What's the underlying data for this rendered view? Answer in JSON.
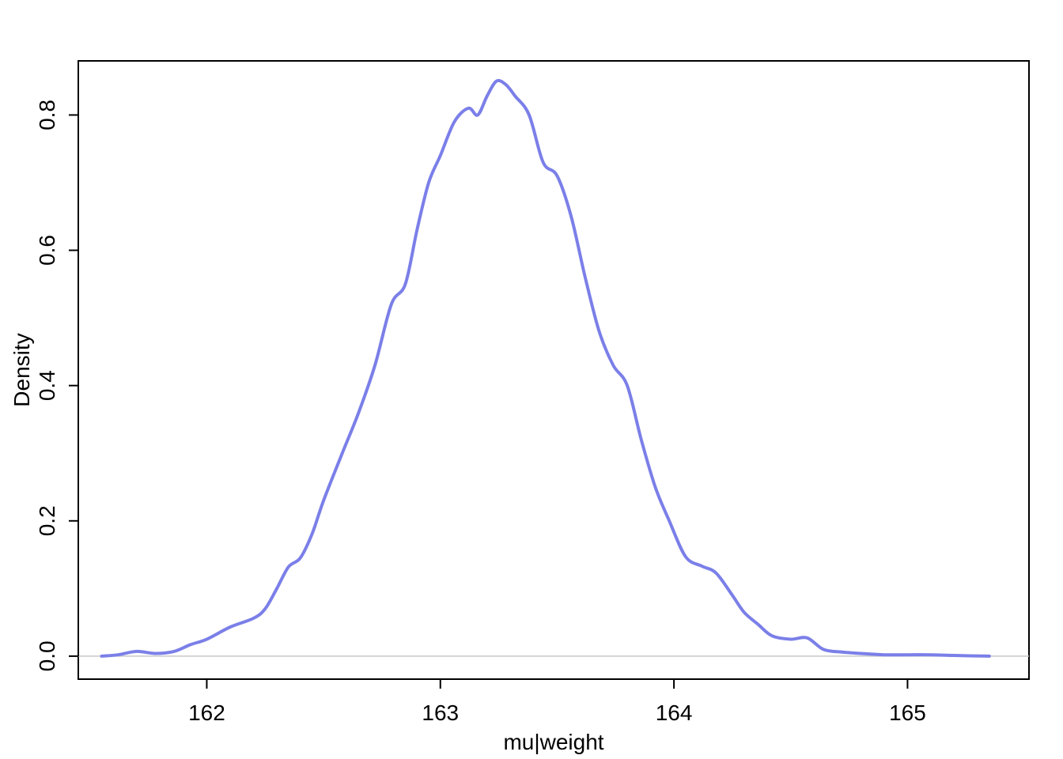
{
  "chart_data": {
    "type": "line",
    "title": "",
    "xlabel": "mu|weight",
    "ylabel": "Density",
    "xlim": [
      161.45,
      165.52
    ],
    "ylim": [
      -0.034,
      0.88
    ],
    "x_ticks": [
      162,
      163,
      164,
      165
    ],
    "x_tick_labels": [
      "162",
      "163",
      "164",
      "165"
    ],
    "y_ticks": [
      0.0,
      0.2,
      0.4,
      0.6,
      0.8
    ],
    "y_tick_labels": [
      "0.0",
      "0.2",
      "0.4",
      "0.6",
      "0.8"
    ],
    "grid": false,
    "reference_line": {
      "y": 0,
      "color": "#c8c8c8"
    },
    "series": [
      {
        "color": "#7b7fe8",
        "x": [
          161.55,
          161.62,
          161.7,
          161.78,
          161.86,
          161.93,
          162.0,
          162.1,
          162.2,
          162.25,
          162.3,
          162.35,
          162.4,
          162.45,
          162.5,
          162.58,
          162.65,
          162.72,
          162.79,
          162.85,
          162.9,
          162.95,
          163.0,
          163.06,
          163.12,
          163.16,
          163.2,
          163.24,
          163.28,
          163.32,
          163.38,
          163.44,
          163.5,
          163.56,
          163.62,
          163.68,
          163.74,
          163.8,
          163.86,
          163.92,
          163.98,
          164.05,
          164.12,
          164.18,
          164.25,
          164.3,
          164.36,
          164.42,
          164.5,
          164.57,
          164.64,
          164.72,
          164.8,
          164.9,
          165.0,
          165.1,
          165.2,
          165.35
        ],
        "y": [
          0.0,
          0.002,
          0.007,
          0.004,
          0.007,
          0.017,
          0.025,
          0.043,
          0.056,
          0.07,
          0.1,
          0.132,
          0.145,
          0.18,
          0.23,
          0.3,
          0.36,
          0.43,
          0.52,
          0.55,
          0.63,
          0.7,
          0.74,
          0.79,
          0.81,
          0.8,
          0.828,
          0.85,
          0.845,
          0.828,
          0.8,
          0.73,
          0.71,
          0.65,
          0.56,
          0.48,
          0.43,
          0.4,
          0.32,
          0.25,
          0.2,
          0.147,
          0.133,
          0.123,
          0.09,
          0.065,
          0.047,
          0.03,
          0.025,
          0.027,
          0.01,
          0.006,
          0.004,
          0.002,
          0.002,
          0.002,
          0.001,
          0.0
        ]
      }
    ]
  }
}
